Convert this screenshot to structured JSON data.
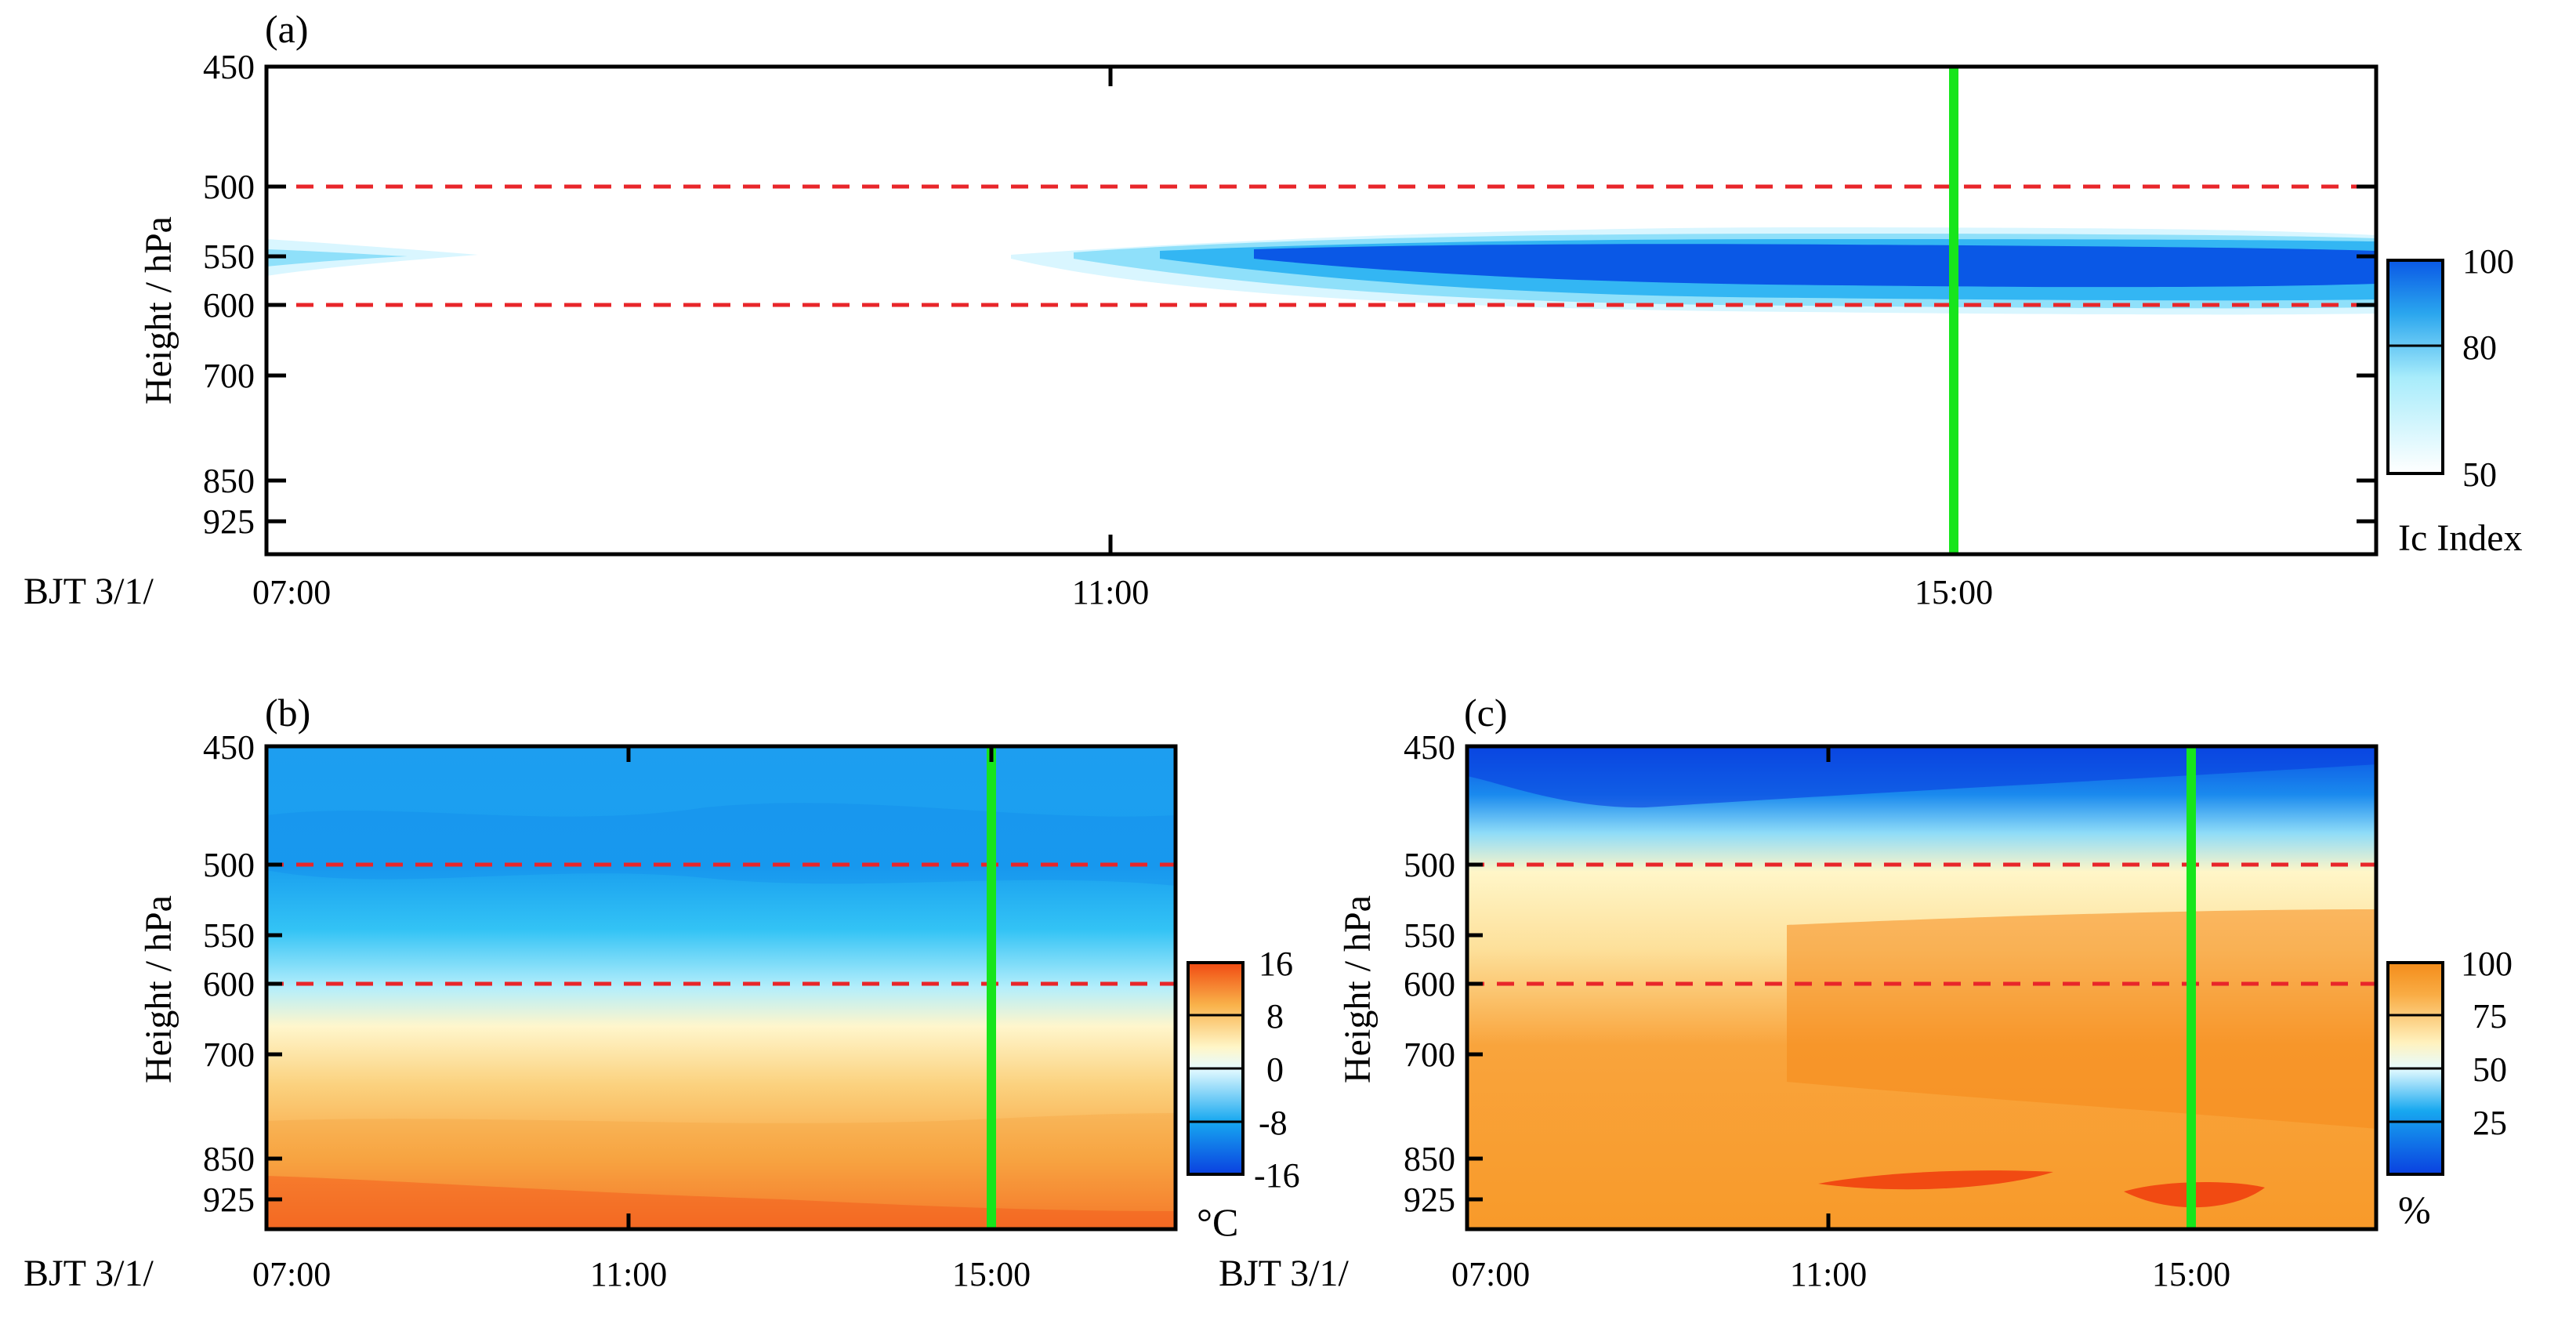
{
  "chart_data": [
    {
      "panel": "(a)",
      "type": "heatmap",
      "title": "",
      "ylabel": "Height / hPa",
      "xlabel_prefix": "BJT 3/1/",
      "y_ticks": [
        "450",
        "500",
        "550",
        "600",
        "700",
        "850",
        "925"
      ],
      "x_ticks": [
        "07:00",
        "11:00",
        "15:00"
      ],
      "colorbar": {
        "label": "Ic Index",
        "ticks": [
          "100",
          "80",
          "50"
        ],
        "range": [
          50,
          100
        ]
      },
      "reference_levels_hPa": [
        500,
        600
      ],
      "marker_time": "15:00",
      "description_values": {
        "max_index_layer_hPa": [
          550,
          600
        ]
      }
    },
    {
      "panel": "(b)",
      "type": "heatmap",
      "ylabel": "Height / hPa",
      "xlabel_prefix": "BJT 3/1/",
      "y_ticks": [
        "450",
        "500",
        "550",
        "600",
        "700",
        "850",
        "925"
      ],
      "x_ticks": [
        "07:00",
        "11:00",
        "15:00"
      ],
      "colorbar": {
        "label": "°C",
        "ticks": [
          "16",
          "8",
          "0",
          "-8",
          "-16"
        ],
        "range": [
          -16,
          16
        ]
      },
      "reference_levels_hPa": [
        500,
        600
      ],
      "marker_time": "15:00"
    },
    {
      "panel": "(c)",
      "type": "heatmap",
      "ylabel": "Height / hPa",
      "xlabel_prefix": "BJT 3/1/",
      "y_ticks": [
        "450",
        "500",
        "550",
        "600",
        "700",
        "850",
        "925"
      ],
      "x_ticks": [
        "07:00",
        "11:00",
        "15:00"
      ],
      "colorbar": {
        "label": "%",
        "ticks": [
          "100",
          "75",
          "50",
          "25"
        ],
        "range": [
          0,
          100
        ]
      },
      "reference_levels_hPa": [
        500,
        600
      ],
      "marker_time": "15:00"
    }
  ],
  "colors": {
    "ref_line": "#e8262a",
    "marker_line": "#17e51c",
    "cold": "#0a58e6",
    "mid_cold": "#17b8f2",
    "pale": "#d9f6ff",
    "pale_warm": "#fff3c0",
    "warm": "#f8a13a",
    "hot": "#f4561a"
  }
}
